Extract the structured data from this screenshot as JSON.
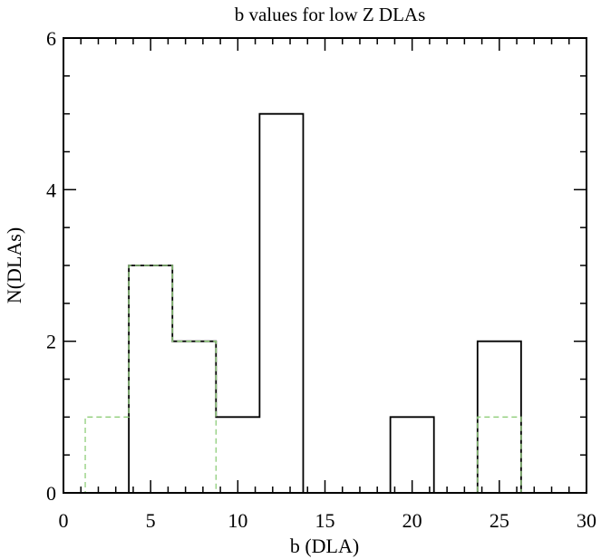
{
  "chart_data": {
    "type": "histogram",
    "title": "b values for low Z DLAs",
    "xlabel": "b (DLA)",
    "ylabel": "N(DLAs)",
    "xlim": [
      0,
      30
    ],
    "ylim": [
      0,
      6
    ],
    "x_ticks": [
      0,
      5,
      10,
      15,
      20,
      25,
      30
    ],
    "y_ticks": [
      0,
      2,
      4,
      6
    ],
    "bin_edges": [
      -1.25,
      1.25,
      3.75,
      6.25,
      8.75,
      11.25,
      13.75,
      16.25,
      18.75,
      21.25,
      23.75,
      26.25,
      28.75,
      31.25
    ],
    "series": [
      {
        "style": "solid",
        "color": "#000000",
        "values": [
          0,
          0,
          3,
          2,
          1,
          5,
          0,
          0,
          1,
          0,
          2,
          0,
          0
        ]
      },
      {
        "style": "dashed",
        "color": "#8fce7a",
        "values": [
          0,
          1,
          3,
          2,
          0,
          0,
          0,
          0,
          0,
          0,
          1,
          0,
          0
        ]
      }
    ],
    "grid": false
  }
}
